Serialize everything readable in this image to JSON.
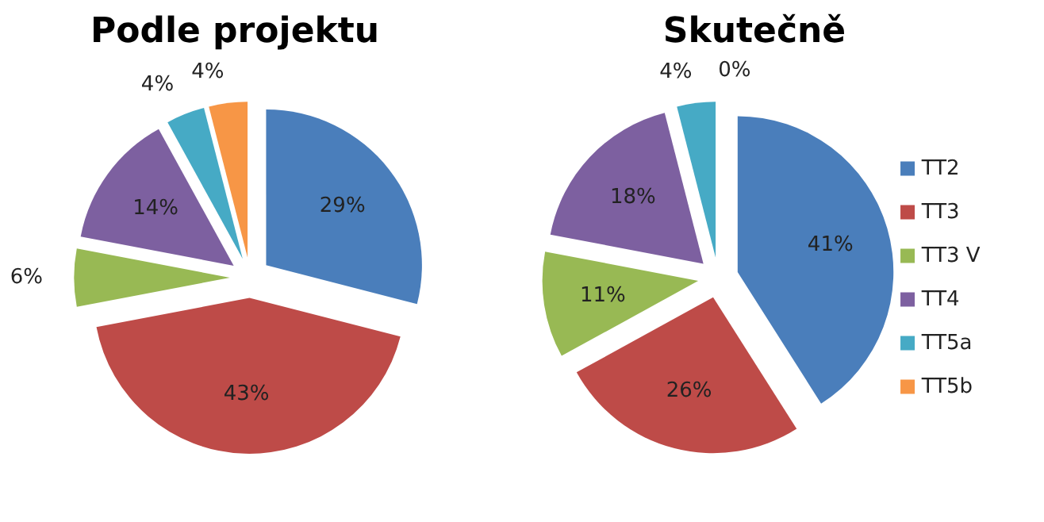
{
  "chart_data": [
    {
      "type": "pie",
      "title": "Podle projektu",
      "categories": [
        null,
        null,
        null,
        null,
        null,
        null
      ],
      "values": [
        29,
        43,
        6,
        14,
        4,
        4
      ],
      "value_labels": [
        "29%",
        "43%",
        "6%",
        "14%",
        "4%",
        "4%"
      ],
      "colors": [
        "#4a7ebb",
        "#be4b48",
        "#98b954",
        "#7d60a0",
        "#46aac5",
        "#f79646"
      ]
    },
    {
      "type": "pie",
      "title": "Skutečně",
      "categories": [
        "TT2",
        "TT3",
        "TT3 V",
        "TT4",
        "TT5a",
        "TT5b"
      ],
      "values": [
        41,
        26,
        11,
        18,
        4,
        0
      ],
      "value_labels": [
        "41%",
        "26%",
        "11%",
        "18%",
        "4%",
        "0%"
      ],
      "colors": [
        "#4a7ebb",
        "#be4b48",
        "#98b954",
        "#7d60a0",
        "#46aac5",
        "#f79646"
      ],
      "legend": "right"
    }
  ]
}
